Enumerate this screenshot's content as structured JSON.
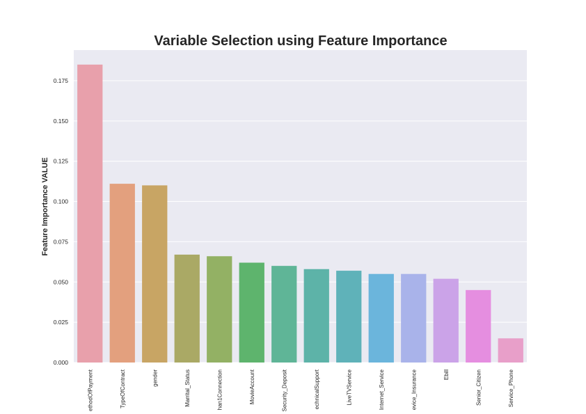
{
  "chart_data": {
    "type": "bar",
    "title": "Variable Selection using Feature Importance",
    "xlabel": "",
    "ylabel": "Feature Importance VALUE",
    "ylim": [
      0,
      0.194
    ],
    "yticks": [
      "0.000",
      "0.025",
      "0.050",
      "0.075",
      "0.100",
      "0.125",
      "0.150",
      "0.175"
    ],
    "grid": true,
    "categories": [
      "ethodOfPayment",
      "TypeOfContract",
      "gender",
      "Marrital_Status",
      "han1Connection",
      "MovieAccount",
      "Security_Deposit",
      "echnicalSupport",
      "LiveTVService",
      "Internet_Service",
      "evice_Insurance",
      "Ebill",
      "Senior_Citizen",
      "Service_Phone"
    ],
    "values": [
      0.185,
      0.111,
      0.11,
      0.067,
      0.066,
      0.062,
      0.06,
      0.058,
      0.057,
      0.055,
      0.055,
      0.052,
      0.045,
      0.015
    ],
    "colors": [
      "#e8a0ab",
      "#e3a07e",
      "#c8a564",
      "#aaa965",
      "#93b164",
      "#5eb46d",
      "#5fb597",
      "#5db3a8",
      "#5fb2b9",
      "#6bb5dc",
      "#a9b3ea",
      "#cba3e8",
      "#e58ee0",
      "#e89fc9"
    ]
  }
}
